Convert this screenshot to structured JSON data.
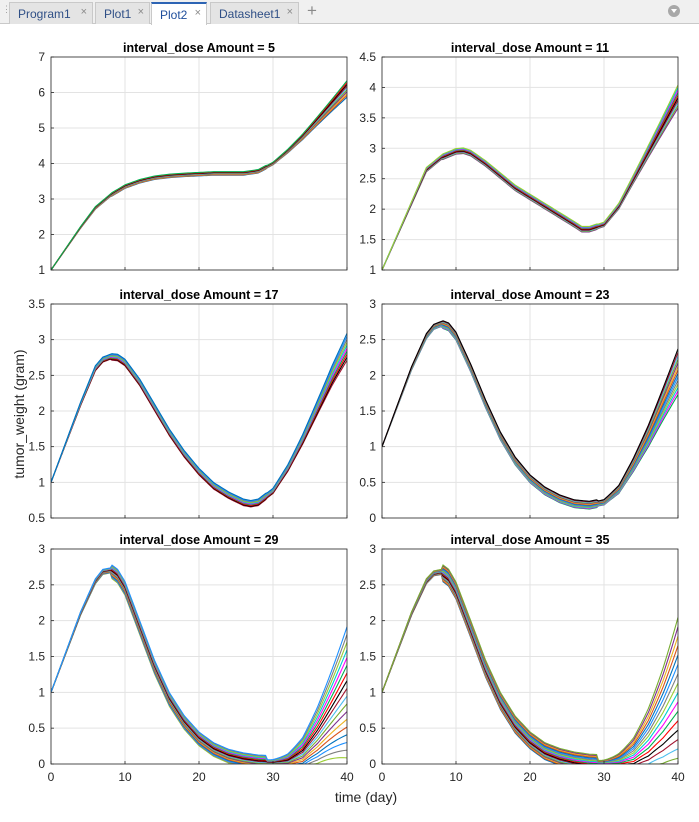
{
  "tabs": [
    {
      "label": "Program1",
      "active": false
    },
    {
      "label": "Plot1",
      "active": false
    },
    {
      "label": "Plot2",
      "active": true
    },
    {
      "label": "Datasheet1",
      "active": false
    }
  ],
  "tab_controls": {
    "new_tab": "+",
    "close": "×"
  },
  "figure": {
    "xlabel": "time (day)",
    "ylabel": "tumor_weight (gram)"
  },
  "colors": [
    "#0072BD",
    "#D95319",
    "#EDB120",
    "#7E2F8E",
    "#77AC30",
    "#4DBEEE",
    "#A2142F",
    "#000000",
    "#FF0000",
    "#00B050",
    "#FF00FF",
    "#00CED1",
    "#9ACD32",
    "#808080",
    "#1E90FF"
  ],
  "chart_data": [
    {
      "type": "line",
      "title": "interval_dose Amount = 5",
      "xlim": [
        0,
        40
      ],
      "ylim": [
        1,
        7
      ],
      "xticks": [
        0,
        10,
        20,
        30,
        40
      ],
      "yticks": [
        1,
        2,
        3,
        4,
        5,
        6,
        7
      ],
      "ytick_labels": [
        "1",
        "2",
        "3",
        "4",
        "5",
        "6",
        "7"
      ],
      "x": [
        0,
        2,
        4,
        6,
        8,
        10,
        12,
        14,
        16,
        18,
        20,
        22,
        24,
        26,
        28,
        30,
        32,
        34,
        36,
        38,
        40
      ],
      "y": [
        1.0,
        1.6,
        2.2,
        2.75,
        3.1,
        3.35,
        3.5,
        3.6,
        3.65,
        3.68,
        3.7,
        3.72,
        3.72,
        3.72,
        3.78,
        4.0,
        4.35,
        4.75,
        5.2,
        5.65,
        6.1
      ],
      "n_series": 10,
      "spread": 0.09
    },
    {
      "type": "line",
      "title": "interval_dose Amount = 11",
      "xlim": [
        0,
        40
      ],
      "ylim": [
        1,
        4.5
      ],
      "xticks": [
        0,
        10,
        20,
        30,
        40
      ],
      "yticks": [
        1,
        1.5,
        2,
        2.5,
        3,
        3.5,
        4,
        4.5
      ],
      "ytick_labels": [
        "1",
        "1.5",
        "2",
        "2.5",
        "3",
        "3.5",
        "4",
        "4.5"
      ],
      "x": [
        0,
        2,
        4,
        6,
        8,
        10,
        11,
        12,
        14,
        16,
        18,
        20,
        22,
        24,
        26,
        27,
        28,
        30,
        32,
        34,
        36,
        38,
        40
      ],
      "y": [
        1.0,
        1.55,
        2.1,
        2.65,
        2.85,
        2.95,
        2.96,
        2.92,
        2.75,
        2.55,
        2.35,
        2.2,
        2.05,
        1.9,
        1.75,
        1.67,
        1.67,
        1.75,
        2.05,
        2.5,
        2.95,
        3.4,
        3.85
      ],
      "n_series": 10,
      "spread": 0.07
    },
    {
      "type": "line",
      "title": "interval_dose Amount = 17",
      "xlim": [
        0,
        40
      ],
      "ylim": [
        0.5,
        3.5
      ],
      "xticks": [
        0,
        10,
        20,
        30,
        40
      ],
      "yticks": [
        0.5,
        1,
        1.5,
        2,
        2.5,
        3,
        3.5
      ],
      "ytick_labels": [
        "0.5",
        "1",
        "1.5",
        "2",
        "2.5",
        "3",
        "3.5"
      ],
      "x": [
        0,
        2,
        4,
        6,
        7,
        8,
        9,
        10,
        12,
        14,
        16,
        18,
        20,
        22,
        24,
        26,
        27,
        28,
        30,
        32,
        34,
        36,
        38,
        40
      ],
      "y": [
        1.0,
        1.55,
        2.1,
        2.6,
        2.72,
        2.76,
        2.75,
        2.68,
        2.4,
        2.05,
        1.7,
        1.4,
        1.15,
        0.95,
        0.82,
        0.72,
        0.7,
        0.72,
        0.88,
        1.2,
        1.6,
        2.05,
        2.5,
        2.9
      ],
      "n_series": 10,
      "spread": 0.07
    },
    {
      "type": "line",
      "title": "interval_dose Amount = 23",
      "xlim": [
        0,
        40
      ],
      "ylim": [
        0,
        3
      ],
      "xticks": [
        0,
        10,
        20,
        30,
        40
      ],
      "yticks": [
        0,
        0.5,
        1,
        1.5,
        2,
        2.5,
        3
      ],
      "ytick_labels": [
        "0",
        "0.5",
        "1",
        "1.5",
        "2",
        "2.5",
        "3"
      ],
      "x": [
        0,
        2,
        4,
        6,
        7,
        8,
        9,
        10,
        12,
        14,
        16,
        18,
        20,
        22,
        24,
        26,
        28,
        30,
        32,
        34,
        36,
        38,
        40
      ],
      "y": [
        1.0,
        1.55,
        2.1,
        2.55,
        2.68,
        2.72,
        2.68,
        2.55,
        2.1,
        1.6,
        1.15,
        0.8,
        0.55,
        0.38,
        0.27,
        0.2,
        0.18,
        0.22,
        0.4,
        0.75,
        1.15,
        1.6,
        2.05
      ],
      "n_series": 14,
      "spread": 0.13
    },
    {
      "type": "line",
      "title": "interval_dose Amount = 29",
      "xlim": [
        0,
        40
      ],
      "ylim": [
        0,
        3
      ],
      "xticks": [
        0,
        10,
        20,
        30,
        40
      ],
      "yticks": [
        0,
        0.5,
        1,
        1.5,
        2,
        2.5,
        3
      ],
      "ytick_labels": [
        "0",
        "0.5",
        "1",
        "1.5",
        "2",
        "2.5",
        "3"
      ],
      "x": [
        0,
        2,
        4,
        6,
        7,
        8,
        9,
        10,
        12,
        14,
        16,
        18,
        20,
        22,
        24,
        26,
        28,
        30,
        32,
        34,
        36,
        38,
        40
      ],
      "y": [
        1.0,
        1.55,
        2.1,
        2.55,
        2.68,
        2.7,
        2.62,
        2.45,
        1.9,
        1.35,
        0.9,
        0.58,
        0.35,
        0.2,
        0.11,
        0.06,
        0.03,
        0.02,
        0.04,
        0.15,
        0.4,
        0.7,
        1.0
      ],
      "n_series": 18,
      "spread": 0.4
    },
    {
      "type": "line",
      "title": "interval_dose Amount = 35",
      "xlim": [
        0,
        40
      ],
      "ylim": [
        0,
        3
      ],
      "xticks": [
        0,
        10,
        20,
        30,
        40
      ],
      "yticks": [
        0,
        0.5,
        1,
        1.5,
        2,
        2.5,
        3
      ],
      "ytick_labels": [
        "0",
        "0.5",
        "1",
        "1.5",
        "2",
        "2.5",
        "3"
      ],
      "x": [
        0,
        2,
        4,
        6,
        7,
        8,
        9,
        10,
        12,
        14,
        16,
        18,
        20,
        22,
        24,
        26,
        28,
        30,
        32,
        34,
        36,
        38,
        40
      ],
      "y": [
        1.0,
        1.55,
        2.1,
        2.55,
        2.66,
        2.68,
        2.6,
        2.42,
        1.88,
        1.33,
        0.88,
        0.55,
        0.33,
        0.18,
        0.1,
        0.05,
        0.02,
        0.01,
        0.02,
        0.08,
        0.25,
        0.5,
        0.8
      ],
      "n_series": 20,
      "spread": 0.55
    }
  ]
}
